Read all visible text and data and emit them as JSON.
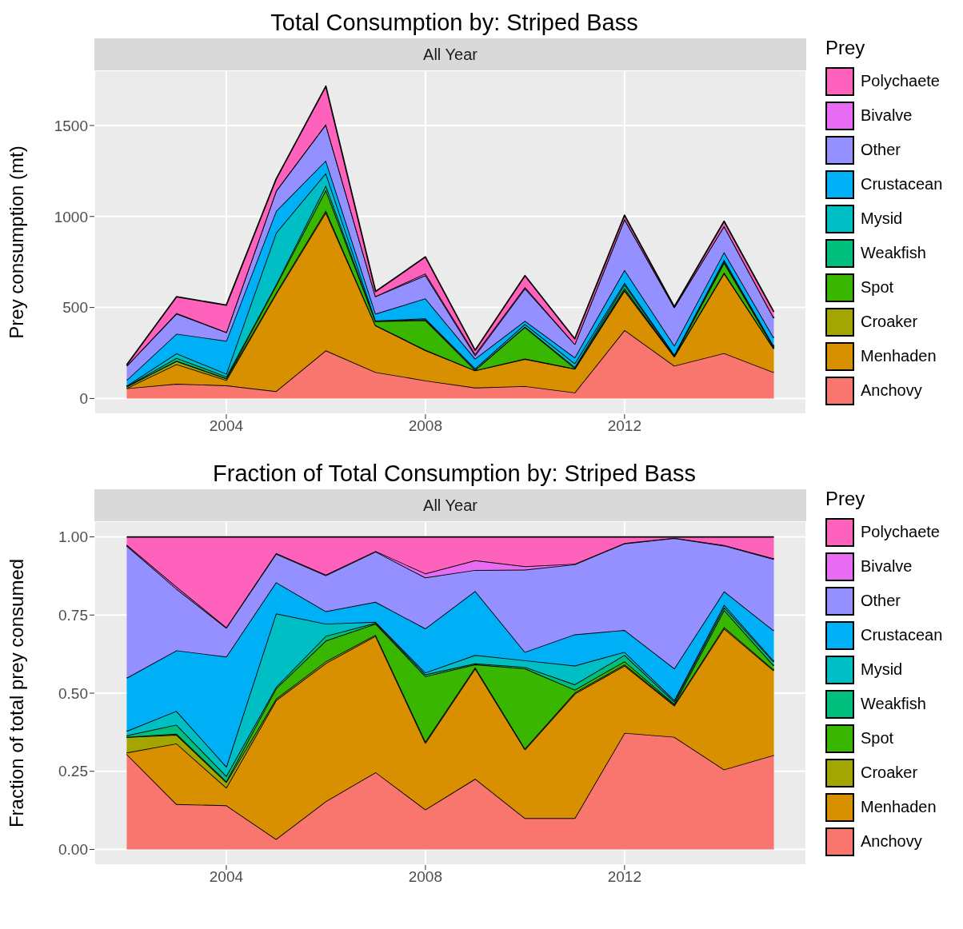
{
  "chart_data": [
    {
      "type": "area",
      "title": "Total Consumption by: Striped Bass",
      "subtitle": "All Year",
      "ylabel": "Prey consumption (mt)",
      "legend_title": "Prey",
      "legend": "right",
      "grid": true,
      "stacked": true,
      "x": [
        2002,
        2003,
        2004,
        2005,
        2006,
        2007,
        2008,
        2009,
        2010,
        2011,
        2012,
        2013,
        2014,
        2015
      ],
      "xlim": [
        2001.35,
        2015.65
      ],
      "xticks": [
        2004,
        2008,
        2012
      ],
      "ylim": [
        -86,
        1803
      ],
      "yticks": [
        0,
        500,
        1000,
        1500
      ],
      "series": [
        {
          "name": "Anchovy",
          "color": "#f8766d",
          "values": [
            56,
            81,
            72,
            40,
            264,
            145,
            99,
            60,
            68,
            33,
            376,
            180,
            249,
            144
          ]
        },
        {
          "name": "Menhaden",
          "color": "#d89000",
          "values": [
            1,
            108,
            29,
            535,
            759,
            256,
            166,
            94,
            149,
            130,
            217,
            50,
            439,
            129
          ]
        },
        {
          "name": "Croaker",
          "color": "#a3a500",
          "values": [
            9,
            16,
            9,
            6,
            10,
            2,
            3,
            1,
            2,
            1,
            4,
            2,
            5,
            1
          ]
        },
        {
          "name": "Spot",
          "color": "#39b600",
          "values": [
            0,
            2,
            2,
            40,
            113,
            21,
            162,
            2,
            173,
            3,
            10,
            2,
            53,
            6
          ]
        },
        {
          "name": "Weakfish",
          "color": "#00bf7d",
          "values": [
            1,
            16,
            9,
            6,
            26,
            2,
            5,
            1,
            3,
            6,
            20,
            4,
            9,
            6
          ]
        },
        {
          "name": "Mysid",
          "color": "#00bfc4",
          "values": [
            3,
            25,
            15,
            283,
            67,
            2,
            5,
            7,
            14,
            20,
            10,
            3,
            8,
            1
          ]
        },
        {
          "name": "Crustacean",
          "color": "#00b0f6",
          "values": [
            31,
            108,
            181,
            120,
            69,
            38,
            110,
            54,
            18,
            33,
            70,
            51,
            42,
            46
          ]
        },
        {
          "name": "Other",
          "color": "#9590ff",
          "values": [
            78,
            110,
            47,
            110,
            197,
            95,
            127,
            18,
            178,
            73,
            279,
            209,
            142,
            109
          ]
        },
        {
          "name": "Bivalve",
          "color": "#e76bf3",
          "values": [
            1,
            4,
            1,
            2,
            3,
            1,
            10,
            8,
            7,
            1,
            1,
            1,
            2,
            1
          ]
        },
        {
          "name": "Polychaete",
          "color": "#ff62bc",
          "values": [
            5,
            89,
            148,
            63,
            208,
            26,
            91,
            20,
            63,
            28,
            20,
            2,
            25,
            33
          ]
        }
      ]
    },
    {
      "type": "area",
      "title": "Fraction of Total Consumption by: Striped Bass",
      "subtitle": "All Year",
      "ylabel": "Fraction of total prey consumed",
      "legend_title": "Prey",
      "legend": "right",
      "grid": true,
      "stacked": true,
      "x": [
        2002,
        2003,
        2004,
        2005,
        2006,
        2007,
        2008,
        2009,
        2010,
        2011,
        2012,
        2013,
        2014,
        2015
      ],
      "xlim": [
        2001.35,
        2015.65
      ],
      "xticks": [
        2004,
        2008,
        2012
      ],
      "ylim": [
        -0.05,
        1.05
      ],
      "yticks": [
        {
          "value": 0,
          "label": "0.00"
        },
        {
          "value": 0.25,
          "label": "0.25"
        },
        {
          "value": 0.5,
          "label": "0.50"
        },
        {
          "value": 0.75,
          "label": "0.75"
        },
        {
          "value": 1,
          "label": "1.00"
        }
      ],
      "series": [
        {
          "name": "Anchovy",
          "color": "#f8766d",
          "values": [
            0.305,
            0.145,
            0.141,
            0.033,
            0.154,
            0.247,
            0.128,
            0.226,
            0.1,
            0.1,
            0.373,
            0.36,
            0.256,
            0.302
          ]
        },
        {
          "name": "Menhaden",
          "color": "#d89000",
          "values": [
            0.005,
            0.194,
            0.057,
            0.444,
            0.442,
            0.436,
            0.213,
            0.353,
            0.22,
            0.398,
            0.215,
            0.1,
            0.451,
            0.27
          ]
        },
        {
          "name": "Croaker",
          "color": "#a3a500",
          "values": [
            0.05,
            0.028,
            0.017,
            0.005,
            0.006,
            0.004,
            0.004,
            0.004,
            0.003,
            0.004,
            0.004,
            0.003,
            0.005,
            0.003
          ]
        },
        {
          "name": "Spot",
          "color": "#39b600",
          "values": [
            0,
            0.003,
            0.003,
            0.033,
            0.066,
            0.035,
            0.209,
            0.009,
            0.256,
            0.009,
            0.01,
            0.003,
            0.054,
            0.013
          ]
        },
        {
          "name": "Weakfish",
          "color": "#00bf7d",
          "values": [
            0.005,
            0.029,
            0.017,
            0.005,
            0.015,
            0.003,
            0.006,
            0.003,
            0.005,
            0.017,
            0.02,
            0.007,
            0.009,
            0.012
          ]
        },
        {
          "name": "Mysid",
          "color": "#00bfc4",
          "values": [
            0.014,
            0.044,
            0.03,
            0.235,
            0.039,
            0.003,
            0.006,
            0.027,
            0.021,
            0.06,
            0.01,
            0.005,
            0.008,
            0.003
          ]
        },
        {
          "name": "Crustacean",
          "color": "#00b0f6",
          "values": [
            0.17,
            0.194,
            0.352,
            0.1,
            0.04,
            0.064,
            0.141,
            0.205,
            0.027,
            0.1,
            0.07,
            0.101,
            0.043,
            0.097
          ]
        },
        {
          "name": "Other",
          "color": "#9590ff",
          "values": [
            0.423,
            0.197,
            0.092,
            0.091,
            0.115,
            0.161,
            0.163,
            0.067,
            0.263,
            0.224,
            0.277,
            0.417,
            0.146,
            0.229
          ]
        },
        {
          "name": "Bivalve",
          "color": "#e76bf3",
          "values": [
            0.003,
            0.007,
            0.002,
            0.002,
            0.002,
            0.002,
            0.013,
            0.031,
            0.011,
            0.002,
            0.001,
            0.001,
            0.002,
            0.002
          ]
        },
        {
          "name": "Polychaete",
          "color": "#ff62bc",
          "values": [
            0.025,
            0.159,
            0.289,
            0.052,
            0.121,
            0.045,
            0.117,
            0.075,
            0.094,
            0.086,
            0.02,
            0.003,
            0.026,
            0.069
          ]
        }
      ]
    }
  ]
}
